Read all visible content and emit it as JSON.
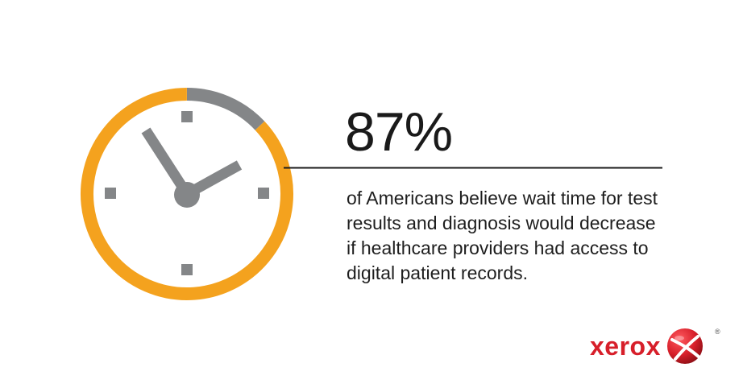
{
  "infographic": {
    "percent": "87%",
    "description": "of Americans believe wait time for test results and diagnosis would decrease if healthcare providers had access to digital patient records.",
    "highlight_fraction": 0.87
  },
  "colors": {
    "ring": "#f4a21e",
    "ring_remainder": "#848688",
    "clock_details": "#848688",
    "text": "#1e1e1e",
    "brand": "#d71f2a"
  },
  "icons": {
    "clock": "clock-icon",
    "brand_mark": "xerox-ball-icon"
  },
  "brand": {
    "wordmark": "xerox",
    "registered": "®"
  }
}
